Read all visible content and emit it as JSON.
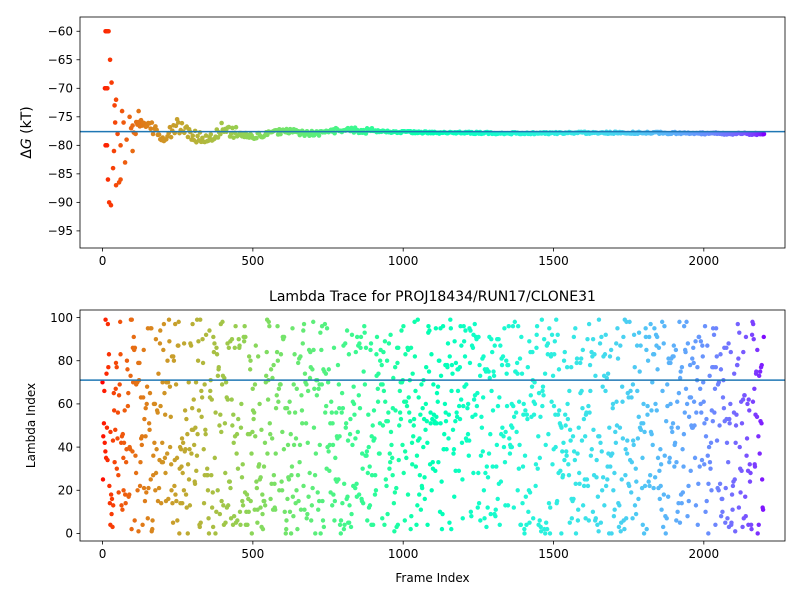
{
  "chart_data": [
    {
      "type": "scatter",
      "title": "",
      "ylabel": "ΔG (kT)",
      "ylabel_prefix": "Δ",
      "ylabel_var": "G",
      "ylabel_suffix": " (kT)",
      "xlabel": "",
      "xlim": [
        -75,
        2270
      ],
      "ylim": [
        -98,
        -57.5
      ],
      "xticks": [
        0,
        500,
        1000,
        1500,
        2000
      ],
      "yticks": [
        -60,
        -65,
        -70,
        -75,
        -80,
        -85,
        -90,
        -95
      ],
      "hline": -77.6,
      "hline_color": "#1f77b4",
      "colormap": "rainbow (red → violet with increasing frame)",
      "n_frames": 2200,
      "early_points": [
        [
          10,
          -60
        ],
        [
          13,
          -60
        ],
        [
          16,
          -60
        ],
        [
          20,
          -60
        ],
        [
          8,
          -70
        ],
        [
          12,
          -70
        ],
        [
          16,
          -70
        ],
        [
          25,
          -65
        ],
        [
          30,
          -69
        ],
        [
          40,
          -73
        ],
        [
          45,
          -72
        ],
        [
          15,
          -80
        ],
        [
          10,
          -80
        ],
        [
          18,
          -86
        ],
        [
          22,
          -90
        ],
        [
          28,
          -90.5
        ],
        [
          35,
          -84
        ],
        [
          45,
          -87
        ],
        [
          55,
          -86.5
        ],
        [
          60,
          -86
        ],
        [
          50,
          -78
        ],
        [
          42,
          -76
        ],
        [
          38,
          -81
        ],
        [
          65,
          -74
        ],
        [
          70,
          -76
        ],
        [
          60,
          -80
        ],
        [
          75,
          -83
        ],
        [
          80,
          -79
        ],
        [
          90,
          -75
        ],
        [
          95,
          -77
        ],
        [
          100,
          -81
        ],
        [
          110,
          -78
        ],
        [
          120,
          -74
        ],
        [
          125,
          -76
        ]
      ],
      "trace": [
        [
          100,
          -77
        ],
        [
          150,
          -76
        ],
        [
          200,
          -79
        ],
        [
          250,
          -76.5
        ],
        [
          300,
          -78
        ],
        [
          350,
          -79.5
        ],
        [
          400,
          -77
        ],
        [
          450,
          -78
        ],
        [
          500,
          -78.5
        ],
        [
          600,
          -77.5
        ],
        [
          700,
          -78
        ],
        [
          800,
          -77.3
        ],
        [
          900,
          -77.5
        ],
        [
          1000,
          -77.7
        ],
        [
          1200,
          -77.8
        ],
        [
          1400,
          -77.9
        ],
        [
          1600,
          -77.8
        ],
        [
          1800,
          -77.8
        ],
        [
          2000,
          -77.9
        ],
        [
          2200,
          -78
        ]
      ]
    },
    {
      "type": "scatter",
      "title": "Lambda Trace for PROJ18434/RUN17/CLONE31",
      "xlabel": "Frame Index",
      "ylabel": "Lambda Index",
      "xlim": [
        -75,
        2270
      ],
      "ylim": [
        -3.5,
        103.5
      ],
      "xticks": [
        0,
        500,
        1000,
        1500,
        2000
      ],
      "yticks": [
        0,
        20,
        40,
        60,
        80,
        100
      ],
      "hline": 71,
      "hline_color": "#1f77b4",
      "colormap": "rainbow (red → violet with increasing frame)",
      "lambda_range": [
        0,
        99
      ],
      "n_frames": 2200
    }
  ]
}
